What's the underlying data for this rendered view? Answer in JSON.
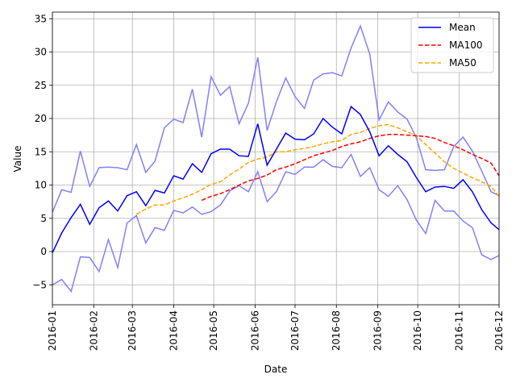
{
  "chart_data": {
    "type": "line",
    "title": "",
    "xlabel": "Date",
    "ylabel": "Value",
    "xlim": [
      "2016-01-01",
      "2016-12-01"
    ],
    "ylim": [
      -8,
      36
    ],
    "grid": true,
    "legend_position": "top-right",
    "x_tick_labels": [
      "2016-01",
      "2016-02",
      "2016-03",
      "2016-04",
      "2016-05",
      "2016-06",
      "2016-07",
      "2016-08",
      "2016-09",
      "2016-10",
      "2016-11",
      "2016-12"
    ],
    "y_ticks": [
      -5,
      0,
      5,
      10,
      15,
      20,
      25,
      30,
      35
    ],
    "x": [
      "2016-01-01",
      "2016-01-08",
      "2016-01-15",
      "2016-01-22",
      "2016-01-29",
      "2016-02-05",
      "2016-02-12",
      "2016-02-19",
      "2016-02-26",
      "2016-03-04",
      "2016-03-11",
      "2016-03-18",
      "2016-03-25",
      "2016-04-01",
      "2016-04-08",
      "2016-04-15",
      "2016-04-22",
      "2016-04-29",
      "2016-05-06",
      "2016-05-13",
      "2016-05-20",
      "2016-05-27",
      "2016-06-03",
      "2016-06-10",
      "2016-06-17",
      "2016-06-24",
      "2016-07-01",
      "2016-07-08",
      "2016-07-15",
      "2016-07-22",
      "2016-07-29",
      "2016-08-05",
      "2016-08-12",
      "2016-08-19",
      "2016-08-26",
      "2016-09-02",
      "2016-09-09",
      "2016-09-16",
      "2016-09-23",
      "2016-09-30",
      "2016-10-07",
      "2016-10-14",
      "2016-10-21",
      "2016-10-28",
      "2016-11-04",
      "2016-11-11",
      "2016-11-18",
      "2016-11-25",
      "2016-12-01"
    ],
    "series": [
      {
        "name": "Mean",
        "color": "#0000ff",
        "style": "solid",
        "values": [
          -0.2,
          2.8,
          5.1,
          7.1,
          4.1,
          6.6,
          7.6,
          6.1,
          8.4,
          9.0,
          6.9,
          9.2,
          8.8,
          11.4,
          10.9,
          13.2,
          11.9,
          14.7,
          15.4,
          15.4,
          14.4,
          14.3,
          19.2,
          13.0,
          15.4,
          17.8,
          16.9,
          16.8,
          17.7,
          20.0,
          18.7,
          17.7,
          21.8,
          20.6,
          18.0,
          14.4,
          15.9,
          14.6,
          13.5,
          11.1,
          9.0,
          9.7,
          9.8,
          9.5,
          10.8,
          9.0,
          6.3,
          4.3,
          3.3
        ]
      },
      {
        "name": "MA100",
        "color": "#ff0000",
        "style": "dashed",
        "values": [
          null,
          null,
          null,
          null,
          null,
          null,
          null,
          null,
          null,
          null,
          null,
          null,
          null,
          null,
          null,
          null,
          7.7,
          8.3,
          8.7,
          9.3,
          10.0,
          10.6,
          11.0,
          11.5,
          12.3,
          12.7,
          13.2,
          13.8,
          14.4,
          14.8,
          15.2,
          15.8,
          16.2,
          16.5,
          17.0,
          17.4,
          17.6,
          17.6,
          17.5,
          17.4,
          17.3,
          17.0,
          16.4,
          15.9,
          15.3,
          14.6,
          14.0,
          13.3,
          11.4
        ]
      },
      {
        "name": "MA50",
        "color": "#ffa500",
        "style": "dashed",
        "values": [
          null,
          null,
          null,
          null,
          null,
          null,
          null,
          null,
          null,
          5.6,
          6.4,
          7.0,
          7.0,
          7.6,
          8.1,
          8.6,
          9.3,
          10.1,
          10.5,
          11.5,
          12.4,
          13.4,
          13.9,
          14.2,
          15.0,
          15.0,
          15.3,
          15.5,
          15.8,
          16.2,
          16.5,
          16.7,
          17.6,
          17.9,
          18.5,
          18.9,
          19.1,
          18.6,
          18.0,
          17.4,
          16.1,
          14.8,
          13.5,
          12.5,
          11.8,
          11.1,
          10.5,
          9.8,
          8.3
        ]
      }
    ],
    "band": {
      "color": "#8080ff",
      "upper": [
        5.9,
        9.3,
        8.9,
        15.1,
        9.8,
        12.6,
        12.7,
        12.6,
        12.3,
        16.1,
        11.9,
        13.6,
        18.6,
        19.9,
        19.4,
        24.4,
        17.2,
        26.3,
        23.5,
        24.8,
        19.2,
        22.3,
        29.2,
        18.2,
        22.5,
        26.1,
        23.3,
        21.5,
        25.8,
        26.7,
        26.9,
        26.4,
        30.6,
        33.9,
        29.7,
        19.8,
        22.5,
        21.0,
        19.9,
        17.1,
        12.3,
        12.2,
        12.3,
        15.8,
        17.2,
        15.1,
        12.1,
        9.0,
        8.4
      ],
      "lower": [
        -5.0,
        -4.2,
        -6.0,
        -0.8,
        -0.9,
        -3.0,
        1.8,
        -2.4,
        4.3,
        5.4,
        1.3,
        3.6,
        3.2,
        6.2,
        5.8,
        6.7,
        5.6,
        6.0,
        7.0,
        9.1,
        9.9,
        9.0,
        12.0,
        7.5,
        9.0,
        12.0,
        11.6,
        12.7,
        12.7,
        13.8,
        12.8,
        12.6,
        14.6,
        11.3,
        12.6,
        9.3,
        8.3,
        9.9,
        7.8,
        4.7,
        2.7,
        7.7,
        6.1,
        6.1,
        4.6,
        3.6,
        -0.5,
        -1.2,
        -0.6
      ]
    }
  }
}
